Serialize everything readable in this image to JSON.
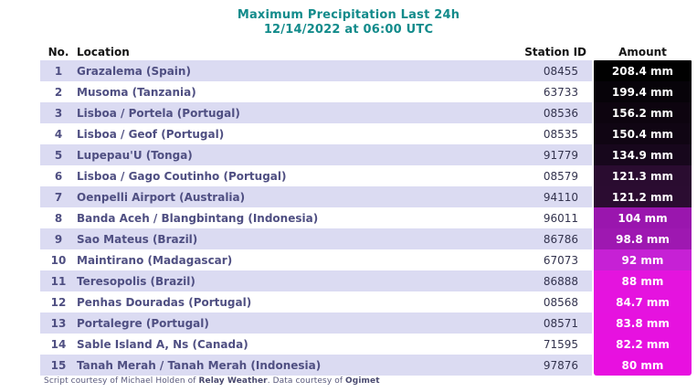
{
  "title": {
    "line1": "Maximum Precipitation Last 24h",
    "line2": "12/14/2022 at 06:00 UTC"
  },
  "columns": {
    "no": "No.",
    "location": "Location",
    "station_id": "Station ID",
    "amount": "Amount"
  },
  "rows": [
    {
      "no": "1",
      "location": "Grazalema (Spain)",
      "station_id": "08455",
      "amount": "208.4 mm",
      "amount_bg": "#010101"
    },
    {
      "no": "2",
      "location": "Musoma (Tanzania)",
      "station_id": "63733",
      "amount": "199.4 mm",
      "amount_bg": "#070309"
    },
    {
      "no": "3",
      "location": "Lisboa / Portela (Portugal)",
      "station_id": "08536",
      "amount": "156.2 mm",
      "amount_bg": "#0d040f"
    },
    {
      "no": "4",
      "location": "Lisboa / Geof (Portugal)",
      "station_id": "08535",
      "amount": "150.4 mm",
      "amount_bg": "#100513"
    },
    {
      "no": "5",
      "location": "Lupepau'U (Tonga)",
      "station_id": "91779",
      "amount": "134.9 mm",
      "amount_bg": "#17071c"
    },
    {
      "no": "6",
      "location": "Lisboa / Gago Coutinho (Portugal)",
      "station_id": "08579",
      "amount": "121.3 mm",
      "amount_bg": "#2a0c30"
    },
    {
      "no": "7",
      "location": "Oenpelli Airport (Australia)",
      "station_id": "94110",
      "amount": "121.2 mm",
      "amount_bg": "#2b0c31"
    },
    {
      "no": "8",
      "location": "Banda Aceh / Blangbintang (Indonesia)",
      "station_id": "96011",
      "amount": "104 mm",
      "amount_bg": "#9a16ae"
    },
    {
      "no": "9",
      "location": "Sao Mateus (Brazil)",
      "station_id": "86786",
      "amount": "98.8 mm",
      "amount_bg": "#9e18b1"
    },
    {
      "no": "10",
      "location": "Maintirano (Madagascar)",
      "station_id": "67073",
      "amount": "92 mm",
      "amount_bg": "#c621d5"
    },
    {
      "no": "11",
      "location": "Teresopolis (Brazil)",
      "station_id": "86888",
      "amount": "88 mm",
      "amount_bg": "#e414de"
    },
    {
      "no": "12",
      "location": "Penhas Douradas (Portugal)",
      "station_id": "08568",
      "amount": "84.7 mm",
      "amount_bg": "#e513df"
    },
    {
      "no": "13",
      "location": "Portalegre (Portugal)",
      "station_id": "08571",
      "amount": "83.8 mm",
      "amount_bg": "#e612df"
    },
    {
      "no": "14",
      "location": "Sable Island A, Ns (Canada)",
      "station_id": "71595",
      "amount": "82.2 mm",
      "amount_bg": "#e711e0"
    },
    {
      "no": "15",
      "location": "Tanah Merah / Tanah Merah (Indonesia)",
      "station_id": "97876",
      "amount": "80 mm",
      "amount_bg": "#e810e0"
    }
  ],
  "footer": {
    "prefix": "Script courtesy of  Michael Holden of ",
    "brand1": "Relay Weather",
    "middle": ". Data courtesy of ",
    "brand2": "Ogimet"
  },
  "colors": {
    "title_teal": "#128b8b",
    "row_stripe": "#dbdbf2",
    "location_text": "#4f4f82",
    "station_text": "#33334e",
    "amount_text": "#ffffff"
  },
  "chart_data": {
    "type": "table",
    "title": "Maximum Precipitation Last 24h 12/14/2022 at 06:00 UTC",
    "columns": [
      "No.",
      "Location",
      "Station ID",
      "Amount"
    ],
    "categories": [
      "Grazalema (Spain)",
      "Musoma (Tanzania)",
      "Lisboa / Portela (Portugal)",
      "Lisboa / Geof (Portugal)",
      "Lupepau'U (Tonga)",
      "Lisboa / Gago Coutinho (Portugal)",
      "Oenpelli Airport (Australia)",
      "Banda Aceh / Blangbintang (Indonesia)",
      "Sao Mateus (Brazil)",
      "Maintirano (Madagascar)",
      "Teresopolis (Brazil)",
      "Penhas Douradas (Portugal)",
      "Portalegre (Portugal)",
      "Sable Island A, Ns (Canada)",
      "Tanah Merah / Tanah Merah (Indonesia)"
    ],
    "station_ids": [
      "08455",
      "63733",
      "08536",
      "08535",
      "91779",
      "08579",
      "94110",
      "96011",
      "86786",
      "67073",
      "86888",
      "08568",
      "08571",
      "71595",
      "97876"
    ],
    "values_mm": [
      208.4,
      199.4,
      156.2,
      150.4,
      134.9,
      121.3,
      121.2,
      104,
      98.8,
      92,
      88,
      84.7,
      83.8,
      82.2,
      80
    ],
    "value_colors": [
      "#010101",
      "#070309",
      "#0d040f",
      "#100513",
      "#17071c",
      "#2a0c30",
      "#2b0c31",
      "#9a16ae",
      "#9e18b1",
      "#c621d5",
      "#e414de",
      "#e513df",
      "#e612df",
      "#e711e0",
      "#e810e0"
    ],
    "layout": "ranked table, amount column color-coded dark (high) to magenta (low)"
  }
}
